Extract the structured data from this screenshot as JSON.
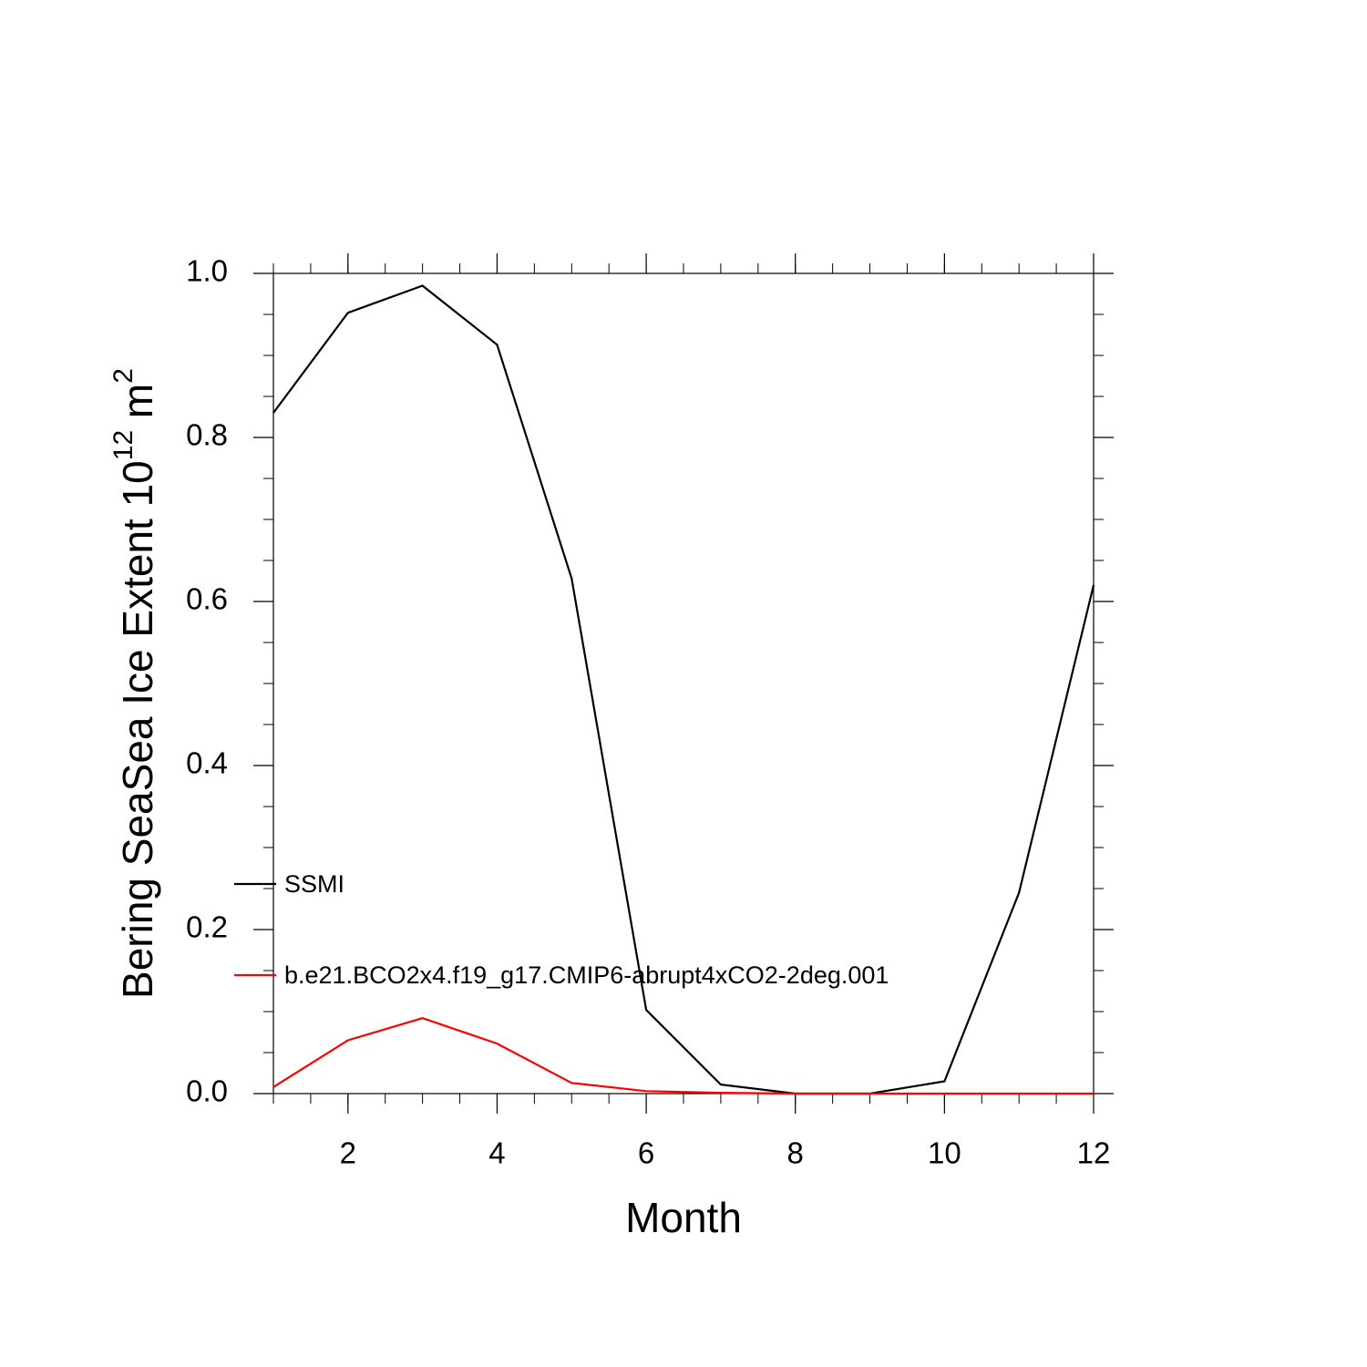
{
  "chart_data": {
    "type": "line",
    "ylabel": [
      "Bering SeaSea Ice Extent 10",
      "12",
      " m",
      "2"
    ],
    "xlabel": "Month",
    "x": [
      1,
      2,
      3,
      4,
      5,
      6,
      7,
      8,
      9,
      10,
      11,
      12
    ],
    "series": [
      {
        "name": "SSMI",
        "color": "#000000",
        "values": [
          0.83,
          0.952,
          0.985,
          0.913,
          0.628,
          0.102,
          0.011,
          0.0,
          0.0,
          0.015,
          0.245,
          0.62
        ]
      },
      {
        "name": "b.e21.BCO2x4.f19_g17.CMIP6-abrupt4xCO2-2deg.001",
        "color": "#ff0000",
        "values": [
          0.008,
          0.065,
          0.092,
          0.061,
          0.013,
          0.003,
          0.001,
          0.0,
          0.0,
          0.0,
          0.0,
          0.0
        ]
      }
    ],
    "xlim": [
      1,
      12
    ],
    "xticks": [
      2,
      4,
      6,
      8,
      10,
      12
    ],
    "ylim": [
      0,
      1
    ],
    "yticks": [
      {
        "value": 0,
        "label": "0.0"
      },
      0.2,
      0.4,
      0.6,
      0.8,
      {
        "value": 1,
        "label": "1.0"
      }
    ],
    "grid": false,
    "legend": "left"
  }
}
